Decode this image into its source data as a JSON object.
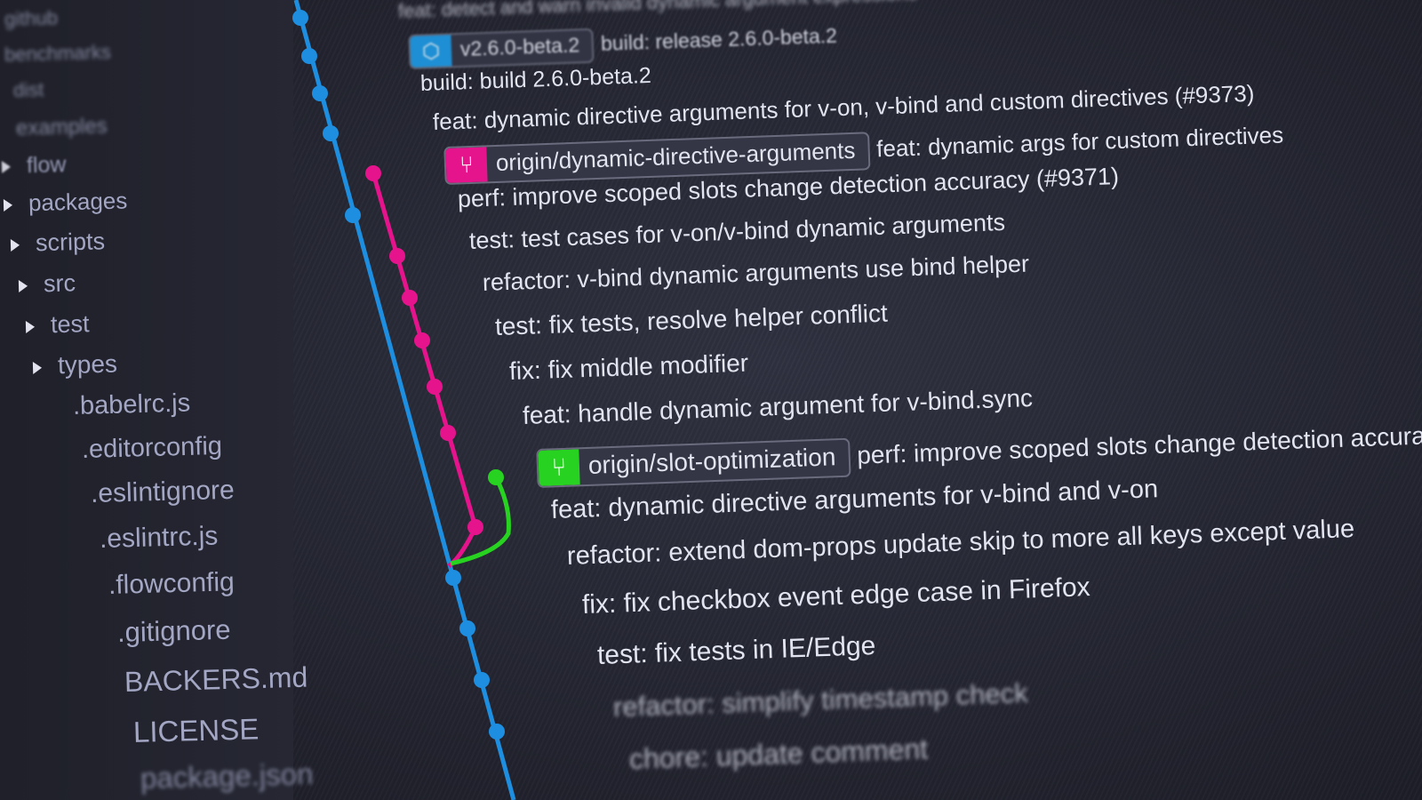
{
  "sidebar": {
    "items": [
      {
        "label": "github",
        "folder": false
      },
      {
        "label": "benchmarks",
        "folder": false
      },
      {
        "label": "dist",
        "folder": false
      },
      {
        "label": "examples",
        "folder": false
      },
      {
        "label": "flow",
        "folder": true
      },
      {
        "label": "packages",
        "folder": true
      },
      {
        "label": "scripts",
        "folder": true
      },
      {
        "label": "src",
        "folder": true
      },
      {
        "label": "test",
        "folder": true
      },
      {
        "label": "types",
        "folder": true
      },
      {
        "label": ".babelrc.js",
        "folder": false
      },
      {
        "label": ".editorconfig",
        "folder": false
      },
      {
        "label": ".eslintignore",
        "folder": false
      },
      {
        "label": ".eslintrc.js",
        "folder": false
      },
      {
        "label": ".flowconfig",
        "folder": false
      },
      {
        "label": ".gitignore",
        "folder": false
      },
      {
        "label": "BACKERS.md",
        "folder": false
      },
      {
        "label": "LICENSE",
        "folder": false
      },
      {
        "label": "package.json",
        "folder": false
      }
    ]
  },
  "commits": [
    {
      "message": "feat: detect and warn invalid dynamic argument expressions"
    },
    {
      "tag": "v2.6.0-beta.2",
      "tag_icon": "tag-icon",
      "tag_color": "#1e9be6",
      "message": "build: release 2.6.0-beta.2"
    },
    {
      "message": "build: build 2.6.0-beta.2"
    },
    {
      "message": "feat: dynamic directive arguments for v-on, v-bind and custom directives (#9373)"
    },
    {
      "tag": "origin/dynamic-directive-arguments",
      "tag_icon": "branch-icon",
      "tag_color": "#e5148c",
      "message": "feat: dynamic args for custom directives"
    },
    {
      "message": "perf: improve scoped slots change detection accuracy (#9371)"
    },
    {
      "message": "test: test cases for v-on/v-bind dynamic arguments"
    },
    {
      "message": "refactor: v-bind dynamic arguments use bind helper"
    },
    {
      "message": "test: fix tests, resolve helper conflict"
    },
    {
      "message": "fix: fix middle modifier"
    },
    {
      "message": "feat: handle dynamic argument for v-bind.sync"
    },
    {
      "tag": "origin/slot-optimization",
      "tag_icon": "branch-icon",
      "tag_color": "#27d320",
      "message": "perf: improve scoped slots change detection accuracy"
    },
    {
      "message": "feat: dynamic directive arguments for v-bind and v-on"
    },
    {
      "message": "refactor: extend dom-props update skip to more all keys except value"
    },
    {
      "message": "fix: fix checkbox event edge case in Firefox"
    },
    {
      "message": "test: fix tests in IE/Edge"
    },
    {
      "message": "refactor: simplify timestamp check"
    },
    {
      "message": "chore: update comment"
    }
  ],
  "graph_colors": {
    "main": "#1e8fe0",
    "dynamic": "#e5148c",
    "slot": "#27d320"
  }
}
